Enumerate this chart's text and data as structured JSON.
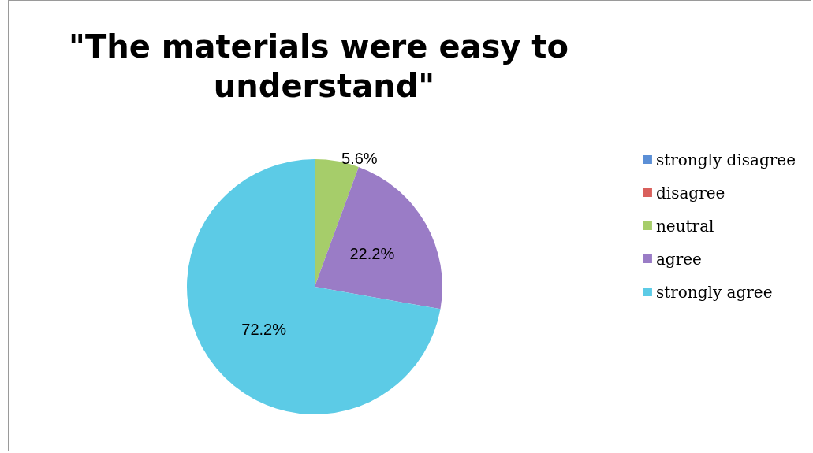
{
  "chart_data": {
    "type": "pie",
    "title": "\"The materials were easy to understand\"",
    "categories": [
      "strongly disagree",
      "disagree",
      "neutral",
      "agree",
      "strongly agree"
    ],
    "values": [
      0,
      0,
      5.6,
      22.2,
      72.2
    ],
    "colors": [
      "#5b8fd6",
      "#d9605c",
      "#a6cd6a",
      "#9a7cc6",
      "#5ccbe6"
    ],
    "value_labels": [
      null,
      null,
      "5.6%",
      "22.2%",
      "72.2%"
    ],
    "legend": "right"
  }
}
